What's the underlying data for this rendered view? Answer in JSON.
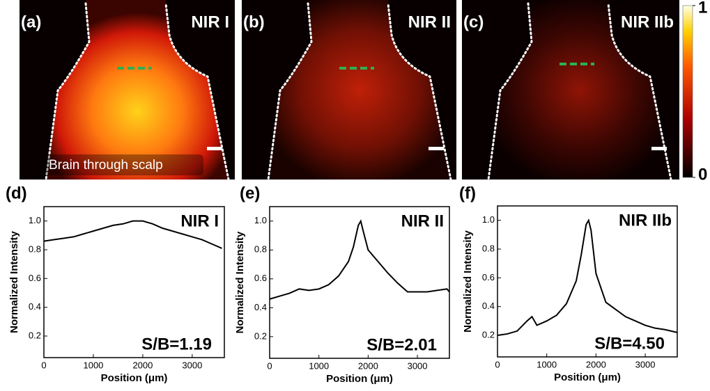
{
  "panels": [
    {
      "label": "(a)",
      "title": "NIR I",
      "caption": "Brain through scalp"
    },
    {
      "label": "(b)",
      "title": "NIR II"
    },
    {
      "label": "(c)",
      "title": "NIR IIb"
    }
  ],
  "colorbar": {
    "ticks": [
      0,
      1
    ]
  },
  "chart_data": [
    {
      "type": "line",
      "panel_label": "(d)",
      "title": "NIR I",
      "annotation": "S/B=1.19",
      "x_label": "Position (μm)",
      "y_label": "Normalized Intensity",
      "color": "#000000",
      "x": [
        0,
        200,
        400,
        600,
        800,
        1000,
        1200,
        1400,
        1600,
        1800,
        2000,
        2200,
        2400,
        2600,
        2800,
        3000,
        3200,
        3400,
        3600
      ],
      "values": [
        0.86,
        0.87,
        0.88,
        0.89,
        0.91,
        0.93,
        0.95,
        0.97,
        0.98,
        1.0,
        1.0,
        0.98,
        0.95,
        0.93,
        0.91,
        0.89,
        0.87,
        0.84,
        0.81
      ],
      "xlim": [
        0,
        3650
      ],
      "xticks": [
        0,
        1000,
        2000,
        3000
      ],
      "ylim": [
        0.05,
        1.1
      ],
      "yticks": [
        0.2,
        0.4,
        0.6,
        0.8,
        {
          "value": 1.0,
          "label": "1.0"
        }
      ]
    },
    {
      "type": "line",
      "panel_label": "(e)",
      "title": "NIR II",
      "annotation": "S/B=2.01",
      "x_label": "Position (μm)",
      "y_label": "Normalized Intensity",
      "color": "#000000",
      "x": [
        0,
        200,
        400,
        600,
        800,
        1000,
        1200,
        1400,
        1600,
        1700,
        1800,
        1850,
        1900,
        2000,
        2200,
        2400,
        2600,
        2800,
        3000,
        3200,
        3400,
        3600,
        3650
      ],
      "values": [
        0.46,
        0.48,
        0.5,
        0.53,
        0.52,
        0.53,
        0.56,
        0.62,
        0.72,
        0.82,
        0.97,
        1.0,
        0.93,
        0.8,
        0.72,
        0.64,
        0.57,
        0.51,
        0.51,
        0.51,
        0.52,
        0.53,
        0.51
      ],
      "xlim": [
        0,
        3650
      ],
      "xticks": [
        0,
        1000,
        2000,
        3000
      ],
      "ylim": [
        0.05,
        1.1
      ],
      "yticks": [
        0.2,
        0.4,
        0.6,
        0.8,
        {
          "value": 1.0,
          "label": "1.0"
        }
      ]
    },
    {
      "type": "line",
      "panel_label": "(f)",
      "title": "NIR IIb",
      "annotation": "S/B=4.50",
      "x_label": "Position (μm)",
      "y_label": "Normalized Intensity",
      "color": "#000000",
      "x": [
        0,
        200,
        400,
        600,
        700,
        800,
        1000,
        1200,
        1400,
        1600,
        1700,
        1800,
        1850,
        1900,
        2000,
        2200,
        2400,
        2600,
        2800,
        3000,
        3200,
        3400,
        3650
      ],
      "values": [
        0.2,
        0.21,
        0.23,
        0.3,
        0.33,
        0.27,
        0.3,
        0.34,
        0.42,
        0.58,
        0.76,
        0.97,
        1.0,
        0.93,
        0.63,
        0.43,
        0.38,
        0.33,
        0.3,
        0.27,
        0.25,
        0.24,
        0.22
      ],
      "xlim": [
        0,
        3650
      ],
      "xticks": [
        0,
        1000,
        2000,
        3000
      ],
      "ylim": [
        0.05,
        1.1
      ],
      "yticks": [
        0.2,
        0.4,
        0.6,
        0.8,
        {
          "value": 1.0,
          "label": "1.0"
        }
      ]
    }
  ]
}
